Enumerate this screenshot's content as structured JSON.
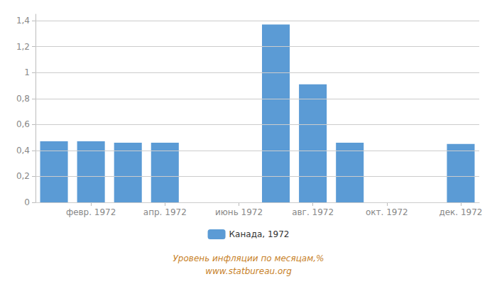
{
  "chart_data": {
    "type": "bar",
    "categories": [
      null,
      "февр. 1972",
      null,
      "апр. 1972",
      null,
      "июнь 1972",
      null,
      "авг. 1972",
      null,
      "окт. 1972",
      null,
      "дек. 1972"
    ],
    "series": [
      {
        "name": "Канада, 1972",
        "color": "#5b9bd5",
        "values": [
          0.47,
          0.47,
          0.46,
          0.46,
          0.0,
          0.0,
          1.37,
          0.91,
          0.46,
          0.0,
          0.0,
          0.45
        ]
      }
    ],
    "ylim": [
      0,
      1.45
    ],
    "yticks": [
      0,
      {
        "value": 0.2,
        "label": "0,2"
      },
      {
        "value": 0.4,
        "label": "0,4"
      },
      {
        "value": 0.6,
        "label": "0,6"
      },
      {
        "value": 0.8,
        "label": "0,8"
      },
      1,
      {
        "value": 1.2,
        "label": "1,2"
      },
      {
        "value": 1.4,
        "label": "1,4"
      }
    ],
    "grid": true,
    "legend": "bottom",
    "annotations": [
      "Уровень инфляции по месяцам,%",
      "www.statbureau.org"
    ]
  }
}
